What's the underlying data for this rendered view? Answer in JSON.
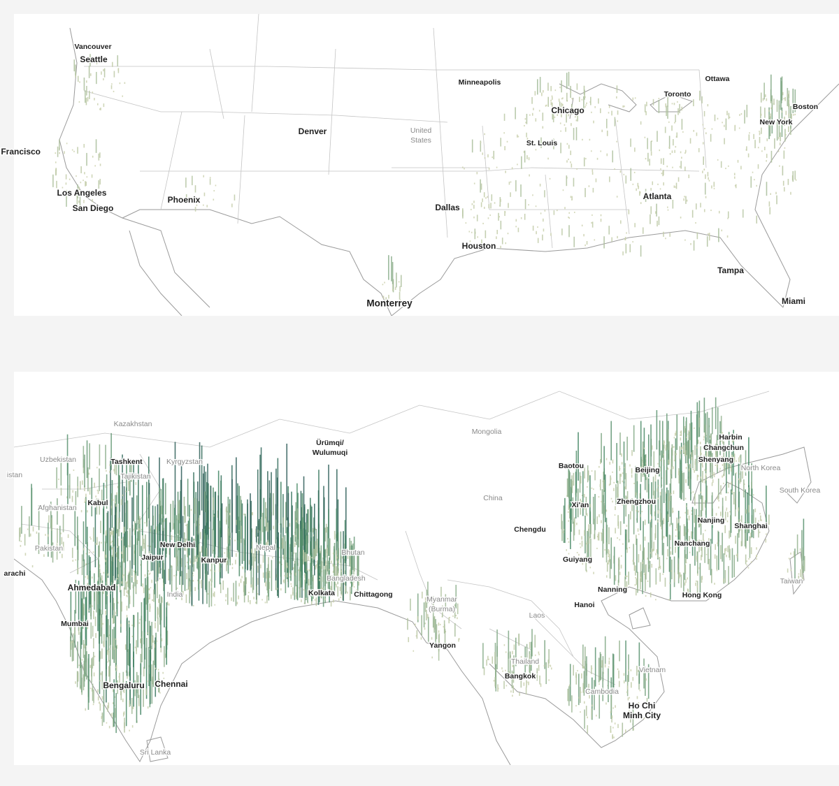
{
  "panels": [
    {
      "cities": [
        "Vancouver",
        "Seattle",
        "an Francisco",
        "Los Angeles",
        "San Diego",
        "Phoenix",
        "Denver",
        "Minneapolis",
        "Chicago",
        "St. Louis",
        "Dallas",
        "Houston",
        "Atlanta",
        "Ottawa",
        "Toronto",
        "Boston",
        "New York",
        "Tampa",
        "Miami",
        "Monterrey"
      ],
      "countries": [
        [
          "United",
          "States"
        ]
      ]
    },
    {
      "cities": [
        "Tashkent",
        [
          "Ürümqi/",
          "Wulumuqi"
        ],
        "Kabul",
        "New Delhi",
        "Jaipur",
        "Kanpur",
        "arachi",
        "Ahmedabad",
        "Kolkata",
        "Chittagong",
        "Mumbai",
        "Yangon",
        "Bengaluru",
        "Chennai",
        "Bangkok",
        [
          "Ho Chi",
          "Minh City"
        ],
        "Hanoi",
        "Nanning",
        "Guiyang",
        "Chengdu",
        "Xi'an",
        "Zhengzhou",
        "Baotou",
        "Beijing",
        "Harbin",
        "Changchun",
        "Shenyang",
        "Nanjing",
        "Shanghai",
        "Nanchang",
        "Hong Kong"
      ],
      "countries": [
        "Kazakhstan",
        "Mongolia",
        "Uzbekistan",
        "Kyrgyzstan",
        "Tajikistan",
        "istan",
        "Afghanistan",
        "Pakistan",
        "India",
        "Nepal",
        "Bhutan",
        "Bangladesh",
        [
          "Myanmar",
          "(Burma)"
        ],
        "China",
        "Laos",
        "Thailand",
        "Cambodia",
        "Vietnam",
        "North Korea",
        "South Korea",
        "Taiwan",
        "Sri Lanka"
      ]
    }
  ]
}
